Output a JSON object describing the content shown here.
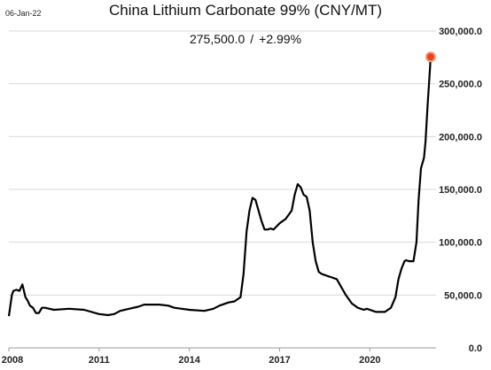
{
  "header": {
    "date": "06-Jan-22",
    "price_text": "275,500.0",
    "change_text": "+2.99%"
  },
  "chart_data": {
    "type": "line",
    "title": "China Lithium Carbonate 99% (CNY/MT)",
    "xlabel": "",
    "ylabel": "",
    "xlim": [
      2008.0,
      2022.2
    ],
    "ylim": [
      0,
      300000
    ],
    "y_ticks": [
      0,
      50000,
      100000,
      150000,
      200000,
      250000,
      300000
    ],
    "y_tick_labels": [
      "0.0",
      "50,000.0",
      "100,000.0",
      "150,000.0",
      "200,000.0",
      "250,000.0",
      "300,000.0"
    ],
    "x_ticks": [
      2008,
      2011,
      2014,
      2017,
      2020
    ],
    "x_tick_labels": [
      "2008",
      "2011",
      "2014",
      "2017",
      "2020"
    ],
    "grid": "horizontal",
    "legend": "none",
    "colors": {
      "line": "#000000",
      "grid": "#d9d9d9",
      "marker": "#e8431e"
    },
    "series": [
      {
        "x": [
          2008.0,
          2008.05,
          2008.1,
          2008.15,
          2008.25,
          2008.35,
          2008.45,
          2008.55,
          2008.62,
          2008.7,
          2008.8,
          2008.9,
          2009.0,
          2009.1,
          2009.2,
          2009.5,
          2010.0,
          2010.5,
          2011.0,
          2011.3,
          2011.5,
          2011.7,
          2012.0,
          2012.3,
          2012.5,
          2013.0,
          2013.3,
          2013.5,
          2014.0,
          2014.5,
          2014.8,
          2015.0,
          2015.3,
          2015.5,
          2015.7,
          2015.8,
          2015.9,
          2016.0,
          2016.1,
          2016.2,
          2016.3,
          2016.4,
          2016.5,
          2016.6,
          2016.7,
          2016.8,
          2017.0,
          2017.2,
          2017.4,
          2017.5,
          2017.6,
          2017.7,
          2017.8,
          2017.9,
          2018.0,
          2018.1,
          2018.2,
          2018.3,
          2018.4,
          2018.5,
          2018.6,
          2018.7,
          2018.8,
          2018.9,
          2019.0,
          2019.2,
          2019.4,
          2019.6,
          2019.8,
          2019.9,
          2020.0,
          2020.1,
          2020.2,
          2020.3,
          2020.5,
          2020.7,
          2020.85,
          2020.95,
          2021.05,
          2021.15,
          2021.2,
          2021.3,
          2021.45,
          2021.55,
          2021.62,
          2021.7,
          2021.8,
          2021.85,
          2021.92,
          2022.0,
          2022.02
        ],
        "y": [
          30000,
          40000,
          50000,
          54000,
          55000,
          54000,
          60000,
          48000,
          45000,
          40000,
          38000,
          33000,
          33000,
          38000,
          38000,
          36000,
          37000,
          36000,
          32000,
          31000,
          32000,
          35000,
          37000,
          39000,
          41000,
          41000,
          40000,
          38000,
          36000,
          35000,
          37000,
          40000,
          43000,
          44000,
          48000,
          70000,
          110000,
          130000,
          142000,
          140000,
          130000,
          120000,
          112000,
          112000,
          113000,
          112000,
          118000,
          122000,
          130000,
          145000,
          155000,
          152000,
          145000,
          143000,
          130000,
          100000,
          82000,
          72000,
          70000,
          69000,
          68000,
          67000,
          66000,
          65000,
          60000,
          50000,
          42000,
          38000,
          36000,
          37000,
          36000,
          35000,
          34000,
          34000,
          34000,
          38000,
          48000,
          65000,
          75000,
          82000,
          83000,
          82000,
          82000,
          100000,
          140000,
          170000,
          180000,
          195000,
          230000,
          265000,
          275500
        ]
      }
    ]
  }
}
